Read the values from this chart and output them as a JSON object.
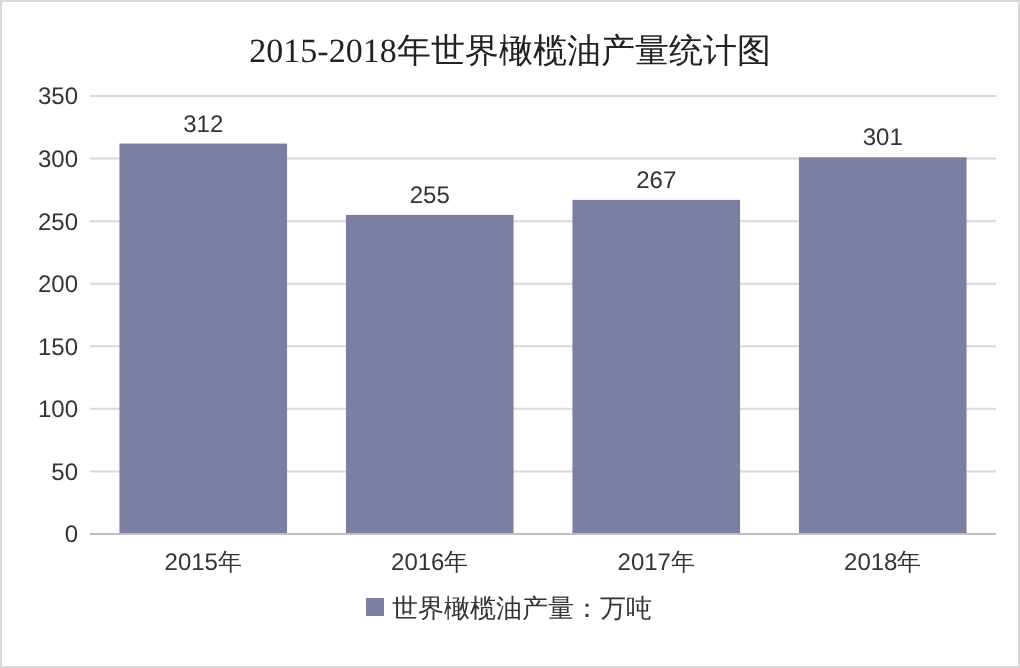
{
  "chart_data": {
    "type": "bar",
    "title": "2015-2018年世界橄榄油产量统计图",
    "categories": [
      "2015年",
      "2016年",
      "2017年",
      "2018年"
    ],
    "series": [
      {
        "name": "世界橄榄油产量：万吨",
        "color": "#7b7fa3",
        "values": [
          312,
          255,
          267,
          301
        ]
      }
    ],
    "ylim": [
      0,
      350
    ],
    "yticks": [
      0,
      50,
      100,
      150,
      200,
      250,
      300,
      350
    ],
    "grid": "y",
    "legend": "bottom",
    "data_labels": true
  }
}
